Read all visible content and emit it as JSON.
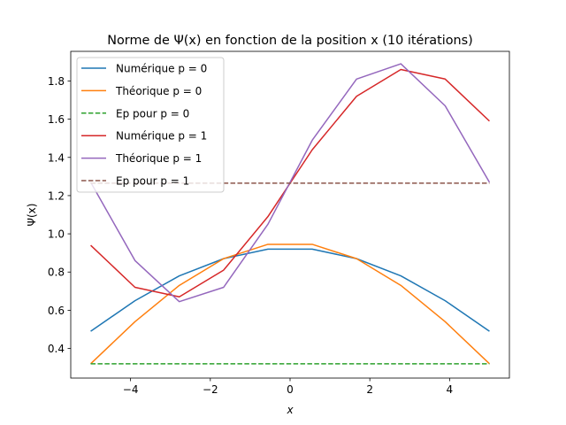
{
  "chart_data": {
    "type": "line",
    "title": "Norme de Ψ(x) en fonction de la position x (10 itérations)",
    "xlabel": "x",
    "ylabel": "Ψ(x)",
    "xlim": [
      -5.5,
      5.5
    ],
    "ylim": [
      0.245,
      1.955
    ],
    "xticks": [
      -4,
      -2,
      0,
      2,
      4
    ],
    "yticks": [
      0.4,
      0.6,
      0.8,
      1.0,
      1.2,
      1.4,
      1.6,
      1.8
    ],
    "xtick_labels": [
      "−4",
      "−2",
      "0",
      "2",
      "4"
    ],
    "ytick_labels": [
      "0.4",
      "0.6",
      "0.8",
      "1.0",
      "1.2",
      "1.4",
      "1.6",
      "1.8"
    ],
    "grid": false,
    "legend_position": "top-left",
    "x": [
      -5.0,
      -3.889,
      -2.778,
      -1.667,
      -0.556,
      0.556,
      1.667,
      2.778,
      3.889,
      5.0
    ],
    "series": [
      {
        "name": "Numérique p = 0",
        "color": "#1f77b4",
        "dash": "solid",
        "values": [
          0.49,
          0.65,
          0.78,
          0.87,
          0.92,
          0.92,
          0.87,
          0.78,
          0.65,
          0.49
        ]
      },
      {
        "name": "Théorique p = 0",
        "color": "#ff7f0e",
        "dash": "solid",
        "values": [
          0.32,
          0.54,
          0.73,
          0.87,
          0.945,
          0.945,
          0.87,
          0.73,
          0.54,
          0.32
        ]
      },
      {
        "name": "Ep pour p = 0",
        "color": "#2ca02c",
        "dash": "dashed",
        "values": [
          0.32,
          0.32,
          0.32,
          0.32,
          0.32,
          0.32,
          0.32,
          0.32,
          0.32,
          0.32
        ]
      },
      {
        "name": "Numérique p = 1",
        "color": "#d62728",
        "dash": "solid",
        "values": [
          0.94,
          0.72,
          0.67,
          0.81,
          1.09,
          1.44,
          1.72,
          1.86,
          1.81,
          1.59
        ]
      },
      {
        "name": "Théorique p = 1",
        "color": "#9467bd",
        "dash": "solid",
        "values": [
          1.27,
          0.86,
          0.645,
          0.72,
          1.05,
          1.49,
          1.81,
          1.89,
          1.67,
          1.27
        ]
      },
      {
        "name": "Ep pour p = 1",
        "color": "#8c564b",
        "dash": "dashed",
        "values": [
          1.265,
          1.265,
          1.265,
          1.265,
          1.265,
          1.265,
          1.265,
          1.265,
          1.265,
          1.265
        ]
      }
    ]
  }
}
